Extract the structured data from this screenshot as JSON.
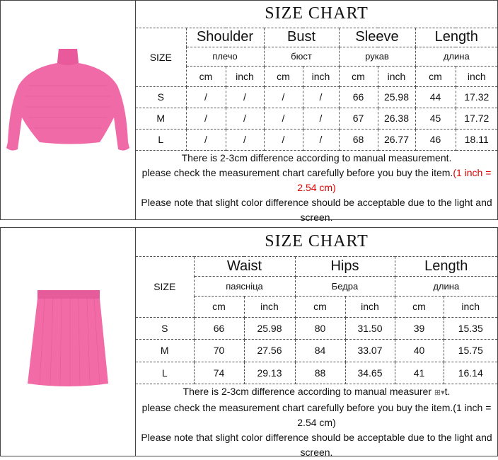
{
  "top": {
    "title": "SIZE CHART",
    "size_label": "SIZE",
    "headers": [
      {
        "en": "Shoulder",
        "ru": "плечо"
      },
      {
        "en": "Bust",
        "ru": "бюст"
      },
      {
        "en": "Sleeve",
        "ru": "рукав"
      },
      {
        "en": "Length",
        "ru": "длина"
      }
    ],
    "units": [
      "cm",
      "inch"
    ],
    "rows": [
      {
        "size": "S",
        "values": [
          "/",
          "/",
          "/",
          "/",
          "66",
          "25.98",
          "44",
          "17.32"
        ]
      },
      {
        "size": "M",
        "values": [
          "/",
          "/",
          "/",
          "/",
          "67",
          "26.38",
          "45",
          "17.72"
        ]
      },
      {
        "size": "L",
        "values": [
          "/",
          "/",
          "/",
          "/",
          "68",
          "26.77",
          "46",
          "18.11"
        ]
      }
    ],
    "note1": "There is 2-3cm difference according to manual measurement.",
    "note2": "please check the measurement chart carefully before you buy the item.",
    "note2_red": "(1 inch = 2.54 cm)",
    "note3": "Please note that slight color difference should be acceptable due to the light and screen.",
    "red_color": "#e00000",
    "garment_color": "#f06aa8"
  },
  "bottom": {
    "title": "SIZE CHART",
    "size_label": "SIZE",
    "headers": [
      {
        "en": "Waist",
        "ru": "паясніца"
      },
      {
        "en": "Hips",
        "ru": "Бедра"
      },
      {
        "en": "Length",
        "ru": "длина"
      }
    ],
    "units": [
      "cm",
      "inch"
    ],
    "rows": [
      {
        "size": "S",
        "values": [
          "66",
          "25.98",
          "80",
          "31.50",
          "39",
          "15.35"
        ]
      },
      {
        "size": "M",
        "values": [
          "70",
          "27.56",
          "84",
          "33.07",
          "40",
          "15.75"
        ]
      },
      {
        "size": "L",
        "values": [
          "74",
          "29.13",
          "88",
          "34.65",
          "41",
          "16.14"
        ]
      }
    ],
    "note1": "There is 2-3cm difference according to manual measurer",
    "note1_end": "t.",
    "note2": "please check the measurement chart carefully before you buy the item.(1 inch = 2.54 cm)",
    "note3": "Please note that slight color difference should be acceptable due to the light and screen.",
    "garment_color": "#f26aa6"
  }
}
